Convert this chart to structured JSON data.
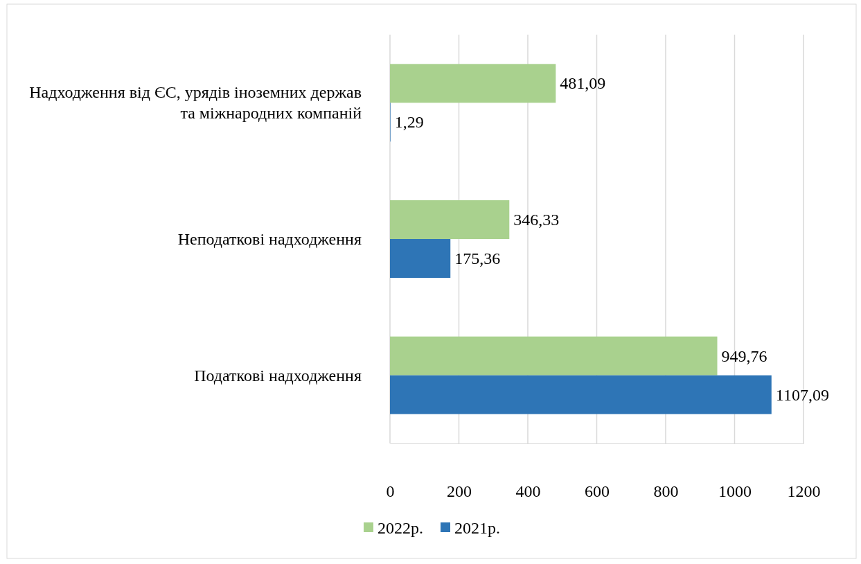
{
  "chart_data": {
    "type": "bar",
    "orientation": "horizontal",
    "categories": [
      "Надходження від ЄС, урядів іноземних держав та міжнародних компаній",
      "Неподаткові надходження",
      "Податкові надходження"
    ],
    "series": [
      {
        "name": "2022р.",
        "color": "#a9d18e",
        "values": [
          481.09,
          346.33,
          949.76
        ],
        "value_labels": [
          "481,09",
          "346,33",
          "949,76"
        ]
      },
      {
        "name": "2021р.",
        "color": "#2e75b6",
        "values": [
          1.29,
          175.36,
          1107.09
        ],
        "value_labels": [
          "1,29",
          "175,36",
          "1107,09"
        ]
      }
    ],
    "xlim": [
      0,
      1200
    ],
    "xticks": [
      0,
      200,
      400,
      600,
      800,
      1000,
      1200
    ],
    "grid": "x",
    "legend": "bottom"
  }
}
